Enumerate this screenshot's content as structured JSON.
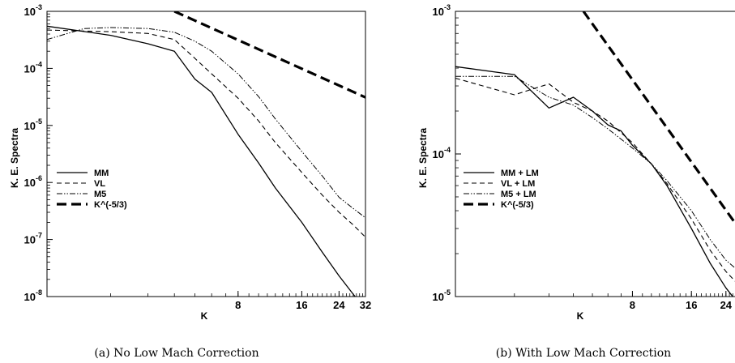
{
  "chart_data": [
    {
      "type": "line",
      "caption": "(a) No Low Mach Correction",
      "xlabel": "K",
      "ylabel": "K. E. Spectra",
      "xscale": "log",
      "yscale": "log",
      "xlim": [
        1,
        32
      ],
      "ylim": [
        1e-08,
        0.001
      ],
      "xticks": [
        {
          "value": 8,
          "label": "8"
        },
        {
          "value": 16,
          "label": "16"
        },
        {
          "value": 24,
          "label": "24"
        },
        {
          "value": 32,
          "label": "32"
        }
      ],
      "yticks": [
        {
          "value": 0.001,
          "base": "10",
          "exp": "-3"
        },
        {
          "value": 0.0001,
          "base": "10",
          "exp": "-4"
        },
        {
          "value": 1e-05,
          "base": "10",
          "exp": "-5"
        },
        {
          "value": 1e-06,
          "base": "10",
          "exp": "-6"
        },
        {
          "value": 1e-07,
          "base": "10",
          "exp": "-7"
        },
        {
          "value": 1e-08,
          "base": "10",
          "exp": "-8"
        }
      ],
      "legend_position": "center-left",
      "series": [
        {
          "name": "MM",
          "style": "solid",
          "x": [
            1,
            2,
            3,
            4,
            5,
            6,
            8,
            10,
            12,
            16,
            20,
            24,
            28,
            30
          ],
          "y": [
            0.00055,
            0.00038,
            0.00027,
            0.0002,
            6.5e-05,
            3.8e-05,
            7e-06,
            2.2e-06,
            8e-07,
            2e-07,
            6e-08,
            2.3e-08,
            1.1e-08,
            8e-09
          ]
        },
        {
          "name": "VL",
          "style": "dashed",
          "x": [
            1,
            2,
            3,
            4,
            5,
            6,
            8,
            10,
            12,
            16,
            20,
            24,
            28,
            32
          ],
          "y": [
            0.00047,
            0.00044,
            0.00041,
            0.00032,
            0.00015,
            8e-05,
            3e-05,
            1.2e-05,
            5e-06,
            1.5e-06,
            6e-07,
            3e-07,
            1.8e-07,
            1.1e-07
          ]
        },
        {
          "name": "M5",
          "style": "dashdotdot",
          "x": [
            1,
            1.5,
            2,
            3,
            4,
            5,
            6,
            8,
            10,
            12,
            16,
            20,
            24,
            28,
            32
          ],
          "y": [
            0.00032,
            0.0005,
            0.00052,
            0.0005,
            0.00043,
            0.0003,
            0.0002,
            8e-05,
            3.2e-05,
            1.3e-05,
            3.5e-06,
            1.3e-06,
            5.5e-07,
            3.5e-07,
            2.4e-07
          ]
        },
        {
          "name": "K^(-5/3)",
          "style": "thickdash",
          "x": [
            4,
            32
          ],
          "y": [
            0.001,
            3.1e-05
          ]
        }
      ]
    },
    {
      "type": "line",
      "caption": "(b) With Low Mach Correction",
      "xlabel": "K",
      "ylabel": "K. E. Spectra",
      "xscale": "log",
      "yscale": "log",
      "xlim": [
        1,
        28
      ],
      "ylim": [
        1e-05,
        0.001
      ],
      "xticks": [
        {
          "value": 8,
          "label": "8"
        },
        {
          "value": 16,
          "label": "16"
        },
        {
          "value": 24,
          "label": "24"
        }
      ],
      "yticks": [
        {
          "value": 0.001,
          "base": "10",
          "exp": "-3"
        },
        {
          "value": 0.0001,
          "base": "10",
          "exp": "-4"
        },
        {
          "value": 1e-05,
          "base": "10",
          "exp": "-5"
        }
      ],
      "legend_position": "center-left",
      "series": [
        {
          "name": "MM + LM",
          "style": "solid",
          "x": [
            1,
            2,
            3,
            4,
            5,
            6,
            7,
            8,
            10,
            12,
            16,
            20,
            24,
            26,
            28
          ],
          "y": [
            0.00041,
            0.00036,
            0.00021,
            0.00025,
            0.0002,
            0.00016,
            0.000145,
            0.000115,
            8.5e-05,
            6e-05,
            3e-05,
            1.7e-05,
            1.15e-05,
            1e-05,
            9.5e-06
          ]
        },
        {
          "name": "VL + LM",
          "style": "dashed",
          "x": [
            1,
            2,
            3,
            4,
            5,
            6,
            8,
            10,
            12,
            16,
            20,
            24,
            28
          ],
          "y": [
            0.00034,
            0.00026,
            0.00031,
            0.00023,
            0.0002,
            0.00017,
            0.00012,
            8.5e-05,
            6.2e-05,
            3.5e-05,
            2.1e-05,
            1.5e-05,
            1.2e-05
          ]
        },
        {
          "name": "M5 + LM",
          "style": "dashdotdot",
          "x": [
            1,
            2,
            3,
            4,
            5,
            6,
            8,
            10,
            12,
            16,
            20,
            24,
            28
          ],
          "y": [
            0.00035,
            0.00035,
            0.00025,
            0.00022,
            0.00018,
            0.00015,
            0.00011,
            8.5e-05,
            6.5e-05,
            4e-05,
            2.5e-05,
            1.8e-05,
            1.5e-05
          ]
        },
        {
          "name": "K^(-5/3)",
          "style": "thickdash",
          "x": [
            4.5,
            28
          ],
          "y": [
            0.001,
            3e-05
          ]
        }
      ]
    }
  ]
}
